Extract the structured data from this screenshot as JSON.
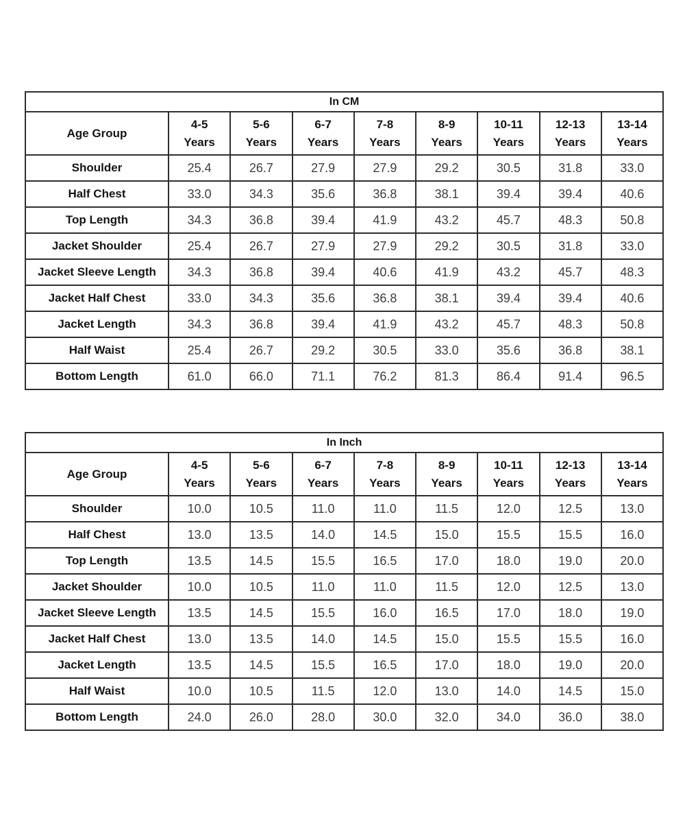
{
  "colors": {
    "background": "#ffffff",
    "border": "#2e2e2e",
    "label_text": "#141414",
    "value_text": "#3d3d3d"
  },
  "tables": [
    {
      "title": "In CM",
      "corner_label": "Age Group",
      "age_suffix": "Years",
      "age_groups": [
        "4-5",
        "5-6",
        "6-7",
        "7-8",
        "8-9",
        "10-11",
        "12-13",
        "13-14"
      ],
      "rows": [
        {
          "label": "Shoulder",
          "values": [
            "25.4",
            "26.7",
            "27.9",
            "27.9",
            "29.2",
            "30.5",
            "31.8",
            "33.0"
          ]
        },
        {
          "label": "Half Chest",
          "values": [
            "33.0",
            "34.3",
            "35.6",
            "36.8",
            "38.1",
            "39.4",
            "39.4",
            "40.6"
          ]
        },
        {
          "label": "Top Length",
          "values": [
            "34.3",
            "36.8",
            "39.4",
            "41.9",
            "43.2",
            "45.7",
            "48.3",
            "50.8"
          ]
        },
        {
          "label": "Jacket Shoulder",
          "values": [
            "25.4",
            "26.7",
            "27.9",
            "27.9",
            "29.2",
            "30.5",
            "31.8",
            "33.0"
          ]
        },
        {
          "label": "Jacket Sleeve Length",
          "values": [
            "34.3",
            "36.8",
            "39.4",
            "40.6",
            "41.9",
            "43.2",
            "45.7",
            "48.3"
          ]
        },
        {
          "label": "Jacket Half Chest",
          "values": [
            "33.0",
            "34.3",
            "35.6",
            "36.8",
            "38.1",
            "39.4",
            "39.4",
            "40.6"
          ]
        },
        {
          "label": "Jacket Length",
          "values": [
            "34.3",
            "36.8",
            "39.4",
            "41.9",
            "43.2",
            "45.7",
            "48.3",
            "50.8"
          ]
        },
        {
          "label": "Half Waist",
          "values": [
            "25.4",
            "26.7",
            "29.2",
            "30.5",
            "33.0",
            "35.6",
            "36.8",
            "38.1"
          ]
        },
        {
          "label": "Bottom Length",
          "values": [
            "61.0",
            "66.0",
            "71.1",
            "76.2",
            "81.3",
            "86.4",
            "91.4",
            "96.5"
          ]
        }
      ]
    },
    {
      "title": "In Inch",
      "corner_label": "Age Group",
      "age_suffix": "Years",
      "age_groups": [
        "4-5",
        "5-6",
        "6-7",
        "7-8",
        "8-9",
        "10-11",
        "12-13",
        "13-14"
      ],
      "rows": [
        {
          "label": "Shoulder",
          "values": [
            "10.0",
            "10.5",
            "11.0",
            "11.0",
            "11.5",
            "12.0",
            "12.5",
            "13.0"
          ]
        },
        {
          "label": "Half Chest",
          "values": [
            "13.0",
            "13.5",
            "14.0",
            "14.5",
            "15.0",
            "15.5",
            "15.5",
            "16.0"
          ]
        },
        {
          "label": "Top Length",
          "values": [
            "13.5",
            "14.5",
            "15.5",
            "16.5",
            "17.0",
            "18.0",
            "19.0",
            "20.0"
          ]
        },
        {
          "label": "Jacket Shoulder",
          "values": [
            "10.0",
            "10.5",
            "11.0",
            "11.0",
            "11.5",
            "12.0",
            "12.5",
            "13.0"
          ]
        },
        {
          "label": "Jacket Sleeve Length",
          "values": [
            "13.5",
            "14.5",
            "15.5",
            "16.0",
            "16.5",
            "17.0",
            "18.0",
            "19.0"
          ]
        },
        {
          "label": "Jacket Half Chest",
          "values": [
            "13.0",
            "13.5",
            "14.0",
            "14.5",
            "15.0",
            "15.5",
            "15.5",
            "16.0"
          ]
        },
        {
          "label": "Jacket Length",
          "values": [
            "13.5",
            "14.5",
            "15.5",
            "16.5",
            "17.0",
            "18.0",
            "19.0",
            "20.0"
          ]
        },
        {
          "label": "Half Waist",
          "values": [
            "10.0",
            "10.5",
            "11.5",
            "12.0",
            "13.0",
            "14.0",
            "14.5",
            "15.0"
          ]
        },
        {
          "label": "Bottom Length",
          "values": [
            "24.0",
            "26.0",
            "28.0",
            "30.0",
            "32.0",
            "34.0",
            "36.0",
            "38.0"
          ]
        }
      ]
    }
  ]
}
